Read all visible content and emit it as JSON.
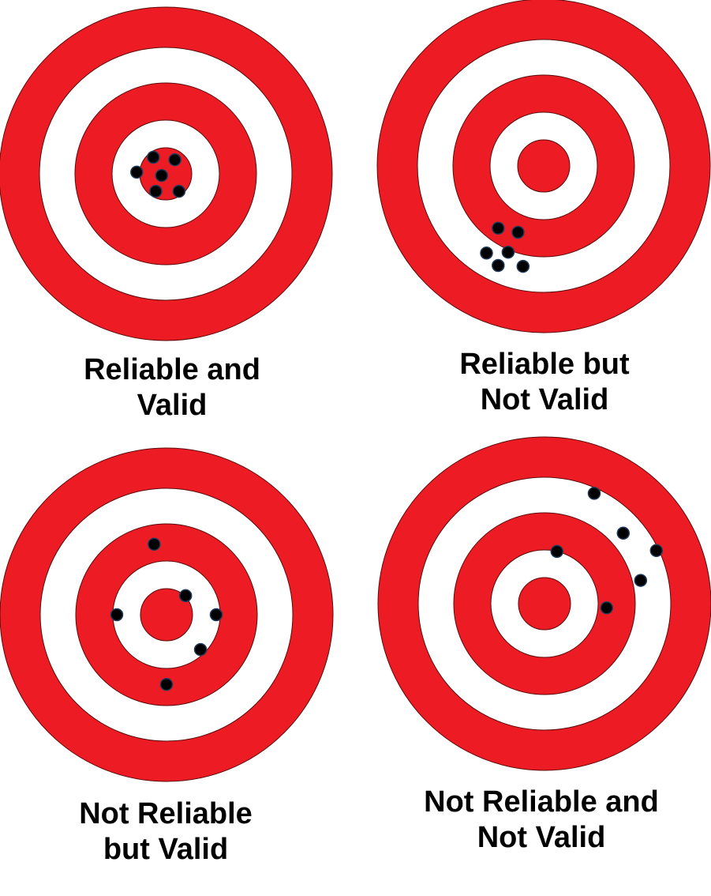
{
  "colors": {
    "ring_red": "#ed1c24",
    "ring_white": "#ffffff",
    "outline": "#5a0a0a",
    "hit": "#000000",
    "hit_outline": "#1f3b5a",
    "text": "#000000"
  },
  "targets": [
    {
      "caption_line1": "Reliable and",
      "caption_line2": "Valid",
      "hits": [
        [
          -0.15,
          -0.2
        ],
        [
          0.11,
          -0.17
        ],
        [
          -0.35,
          -0.02
        ],
        [
          -0.05,
          0.02
        ],
        [
          -0.12,
          0.21
        ],
        [
          0.16,
          0.21
        ]
      ]
    },
    {
      "caption_line1": "Reliable but",
      "caption_line2": "Not Valid",
      "hits": [
        [
          -0.55,
          0.75
        ],
        [
          -0.31,
          0.8
        ],
        [
          -0.69,
          1.05
        ],
        [
          -0.43,
          1.04
        ],
        [
          -0.55,
          1.2
        ],
        [
          -0.25,
          1.21
        ]
      ]
    },
    {
      "caption_line1": "Not Reliable",
      "caption_line2": "but Valid",
      "hits": [
        [
          -0.15,
          -0.85
        ],
        [
          0.23,
          -0.23
        ],
        [
          -0.6,
          0.0
        ],
        [
          0.6,
          0.0
        ],
        [
          0.41,
          0.42
        ],
        [
          0.0,
          0.84
        ]
      ]
    },
    {
      "caption_line1": "Not Reliable and",
      "caption_line2": "Not Valid",
      "hits": [
        [
          0.6,
          -1.33
        ],
        [
          0.95,
          -0.85
        ],
        [
          1.35,
          -0.64
        ],
        [
          0.15,
          -0.63
        ],
        [
          1.16,
          -0.28
        ],
        [
          0.75,
          0.05
        ]
      ]
    }
  ]
}
